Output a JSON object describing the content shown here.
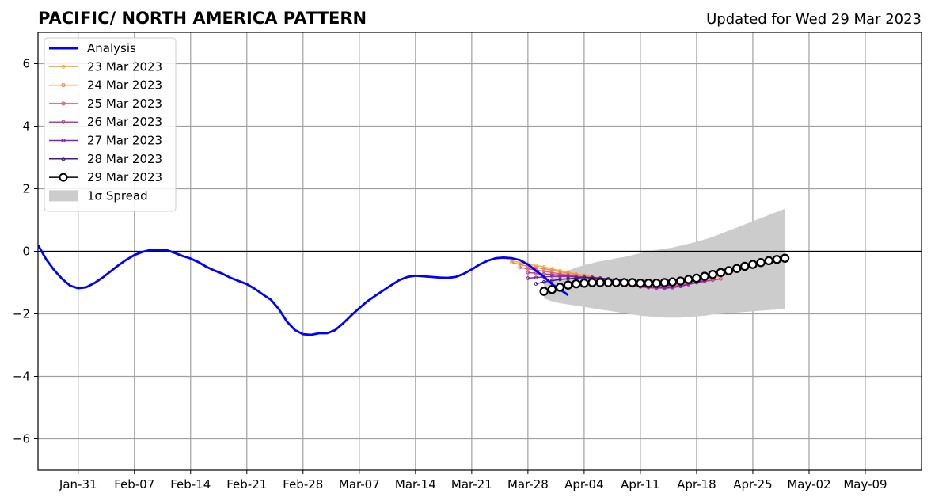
{
  "header": {
    "title": "PACIFIC/ NORTH AMERICA PATTERN",
    "updated": "Updated for Wed 29 Mar 2023"
  },
  "chart_data": {
    "type": "line",
    "title": "PACIFIC/ NORTH AMERICA PATTERN",
    "subtitle": "Updated for Wed 29 Mar 2023",
    "xlabel": "",
    "ylabel": "",
    "x_axis_type": "date",
    "xlim": [
      "2023-01-26",
      "2023-05-16"
    ],
    "ylim": [
      -7,
      7
    ],
    "grid": true,
    "legend_position": "top-left",
    "x_ticks": [
      {
        "date": "2023-01-31",
        "label": "Jan-31"
      },
      {
        "date": "2023-02-07",
        "label": "Feb-07"
      },
      {
        "date": "2023-02-14",
        "label": "Feb-14"
      },
      {
        "date": "2023-02-21",
        "label": "Feb-21"
      },
      {
        "date": "2023-02-28",
        "label": "Feb-28"
      },
      {
        "date": "2023-03-07",
        "label": "Mar-07"
      },
      {
        "date": "2023-03-14",
        "label": "Mar-14"
      },
      {
        "date": "2023-03-21",
        "label": "Mar-21"
      },
      {
        "date": "2023-03-28",
        "label": "Mar-28"
      },
      {
        "date": "2023-04-04",
        "label": "Apr-04"
      },
      {
        "date": "2023-04-11",
        "label": "Apr-11"
      },
      {
        "date": "2023-04-18",
        "label": "Apr-18"
      },
      {
        "date": "2023-04-25",
        "label": "Apr-25"
      },
      {
        "date": "2023-05-02",
        "label": "May-02"
      },
      {
        "date": "2023-05-09",
        "label": "May-09"
      }
    ],
    "y_ticks": [
      {
        "value": -6,
        "label": "−6"
      },
      {
        "value": -4,
        "label": "−4"
      },
      {
        "value": -2,
        "label": "−2"
      },
      {
        "value": 0,
        "label": "0"
      },
      {
        "value": 2,
        "label": "2"
      },
      {
        "value": 4,
        "label": "4"
      },
      {
        "value": 6,
        "label": "6"
      }
    ],
    "analysis": {
      "name": "Analysis",
      "color": "#0000ff",
      "start_date": "2023-01-26",
      "values": [
        0.2,
        -0.25,
        -0.6,
        -0.88,
        -1.1,
        -1.18,
        -1.15,
        -1.02,
        -0.85,
        -0.65,
        -0.45,
        -0.27,
        -0.12,
        -0.02,
        0.04,
        0.05,
        0.04,
        -0.05,
        -0.15,
        -0.23,
        -0.35,
        -0.5,
        -0.62,
        -0.72,
        -0.85,
        -0.95,
        -1.05,
        -1.2,
        -1.38,
        -1.55,
        -1.85,
        -2.25,
        -2.52,
        -2.65,
        -2.67,
        -2.62,
        -2.62,
        -2.52,
        -2.3,
        -2.05,
        -1.82,
        -1.6,
        -1.42,
        -1.25,
        -1.08,
        -0.92,
        -0.82,
        -0.78,
        -0.8,
        -0.82,
        -0.84,
        -0.85,
        -0.82,
        -0.72,
        -0.58,
        -0.42,
        -0.3,
        -0.22,
        -0.2,
        -0.22,
        -0.28,
        -0.42,
        -0.62,
        -0.82,
        -1.05,
        -1.22,
        -1.4
      ]
    },
    "series": [
      {
        "name": "23 Mar 2023",
        "color": "#f5b342",
        "start_date": "2023-03-25",
        "values": [
          -0.22,
          -0.3,
          -0.36,
          -0.42,
          -0.46,
          -0.5,
          -0.56,
          -0.62,
          -0.66,
          -0.72,
          -0.76,
          -0.8,
          -0.86,
          -0.9,
          -0.96,
          -1.0,
          -1.04,
          -1.06,
          -1.08,
          -1.1,
          -1.1,
          -1.08,
          -1.04,
          -1.0,
          -0.96,
          -0.9,
          -0.84,
          -0.78,
          -0.7,
          -0.6,
          -0.52
        ]
      },
      {
        "name": "24 Mar 2023",
        "color": "#ee8a4a",
        "start_date": "2023-03-26",
        "values": [
          -0.36,
          -0.42,
          -0.48,
          -0.52,
          -0.56,
          -0.6,
          -0.66,
          -0.7,
          -0.74,
          -0.78,
          -0.82,
          -0.88,
          -0.92,
          -0.98,
          -1.02,
          -1.06,
          -1.08,
          -1.12,
          -1.12,
          -1.1,
          -1.08,
          -1.04,
          -1.0,
          -0.96,
          -0.9,
          -0.84,
          -0.78,
          -0.7,
          -0.62,
          -0.54
        ]
      },
      {
        "name": "25 Mar 2023",
        "color": "#e06070",
        "start_date": "2023-03-27",
        "values": [
          -0.52,
          -0.56,
          -0.6,
          -0.64,
          -0.68,
          -0.72,
          -0.76,
          -0.8,
          -0.84,
          -0.88,
          -0.92,
          -0.96,
          -1.0,
          -1.06,
          -1.1,
          -1.12,
          -1.14,
          -1.16,
          -1.14,
          -1.12,
          -1.08,
          -1.04,
          -1.0,
          -0.96,
          -0.92,
          -0.88
        ]
      },
      {
        "name": "26 Mar 2023",
        "color": "#b8408f",
        "start_date": "2023-03-28",
        "values": [
          -0.68,
          -0.7,
          -0.72,
          -0.74,
          -0.76,
          -0.78,
          -0.8,
          -0.82,
          -0.86,
          -0.9,
          -0.94,
          -0.98,
          -1.04,
          -1.1,
          -1.14,
          -1.16,
          -1.18,
          -1.16,
          -1.14,
          -1.1,
          -1.06,
          -1.0,
          -0.96,
          -0.92,
          -0.88
        ]
      },
      {
        "name": "27 Mar 2023",
        "color": "#8a1fa8",
        "start_date": "2023-03-28",
        "values": [
          -0.86,
          -0.84,
          -0.82,
          -0.8,
          -0.8,
          -0.8,
          -0.82,
          -0.84,
          -0.86,
          -0.88,
          -0.92,
          -0.96,
          -1.0,
          -1.06,
          -1.1,
          -1.14,
          -1.16,
          -1.18,
          -1.16,
          -1.12,
          -1.06,
          -1.0,
          -0.94
        ]
      },
      {
        "name": "28 Mar 2023",
        "color": "#4a1490",
        "start_date": "2023-03-29",
        "values": [
          -1.04,
          -0.98,
          -0.94,
          -0.9,
          -0.88,
          -0.86,
          -0.84,
          -0.84,
          -0.86,
          -0.88,
          -0.9,
          -0.94,
          -0.98,
          -1.02,
          -1.06,
          -1.08,
          -1.1,
          -1.08
        ]
      },
      {
        "name": "29 Mar 2023",
        "color": "#000000",
        "start_date": "2023-03-30",
        "marker": "open-circle",
        "values": [
          -1.28,
          -1.22,
          -1.15,
          -1.08,
          -1.04,
          -1.02,
          -1.0,
          -1.0,
          -1.0,
          -1.0,
          -1.0,
          -1.0,
          -1.02,
          -1.02,
          -1.02,
          -1.0,
          -0.98,
          -0.95,
          -0.9,
          -0.86,
          -0.8,
          -0.74,
          -0.68,
          -0.62,
          -0.55,
          -0.48,
          -0.42,
          -0.36,
          -0.3,
          -0.26,
          -0.22
        ]
      }
    ],
    "spread": {
      "name": "1σ Spread",
      "color": "#cccccc",
      "start_date": "2023-03-30",
      "upper": [
        -0.96,
        -0.84,
        -0.72,
        -0.62,
        -0.52,
        -0.44,
        -0.38,
        -0.32,
        -0.28,
        -0.22,
        -0.18,
        -0.12,
        -0.06,
        0.0,
        0.04,
        0.08,
        0.12,
        0.18,
        0.24,
        0.3,
        0.38,
        0.46,
        0.56,
        0.66,
        0.76,
        0.86,
        0.96,
        1.06,
        1.16,
        1.26,
        1.36
      ],
      "lower": [
        -1.5,
        -1.6,
        -1.66,
        -1.7,
        -1.74,
        -1.78,
        -1.82,
        -1.86,
        -1.9,
        -1.94,
        -1.98,
        -2.02,
        -2.06,
        -2.08,
        -2.1,
        -2.12,
        -2.12,
        -2.12,
        -2.1,
        -2.08,
        -2.06,
        -2.02,
        -2.0,
        -1.98,
        -1.96,
        -1.94,
        -1.92,
        -1.9,
        -1.88,
        -1.86,
        -1.84
      ]
    },
    "legend": [
      {
        "label": "Analysis",
        "kind": "thick-line",
        "color": "#0000ff"
      },
      {
        "label": "23 Mar 2023",
        "kind": "line-dot",
        "color": "#f5b342"
      },
      {
        "label": "24 Mar 2023",
        "kind": "line-dot",
        "color": "#ee8a4a"
      },
      {
        "label": "25 Mar 2023",
        "kind": "line-dot",
        "color": "#e06070"
      },
      {
        "label": "26 Mar 2023",
        "kind": "line-dot",
        "color": "#b8408f"
      },
      {
        "label": "27 Mar 2023",
        "kind": "line-dot",
        "color": "#8a1fa8"
      },
      {
        "label": "28 Mar 2023",
        "kind": "line-dot",
        "color": "#4a1490"
      },
      {
        "label": "29 Mar 2023",
        "kind": "line-circle",
        "color": "#000000"
      },
      {
        "label": "1σ Spread",
        "kind": "patch",
        "color": "#cccccc"
      }
    ]
  }
}
